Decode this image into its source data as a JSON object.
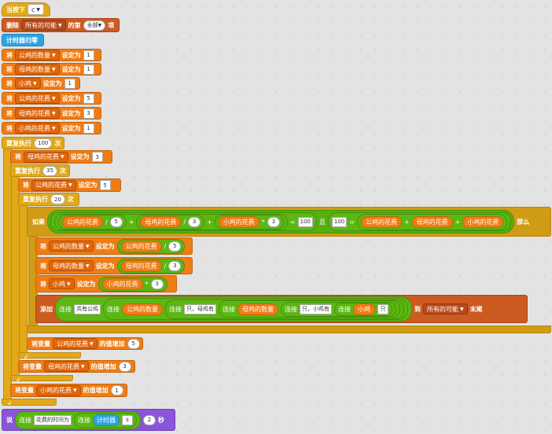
{
  "hat": {
    "label": "当按下",
    "key": "c"
  },
  "delete": {
    "label": "删除",
    "list": "所有的可能",
    "of": "的第",
    "item": "全部",
    "suffix": "项"
  },
  "reset_timer": "计时器归零",
  "set_prefix": "将",
  "set_to": "设定为",
  "init_sets": [
    {
      "var": "公鸡的数量",
      "value": "1"
    },
    {
      "var": "母鸡的数量",
      "value": "1"
    },
    {
      "var": "小鸡",
      "value": "1"
    },
    {
      "var": "公鸡的花费",
      "value": "5"
    },
    {
      "var": "母鸡的花费",
      "value": "3"
    },
    {
      "var": "小鸡的花费",
      "value": "1"
    }
  ],
  "repeat_label": "重复执行",
  "times": "次",
  "repeat1": "100",
  "repeat2": "35",
  "repeat3": "20",
  "loop2_set": {
    "var": "母鸡的花费",
    "value": "3"
  },
  "loop3_set": {
    "var": "公鸡的花费",
    "value": "5"
  },
  "if_block": {
    "if": "如果",
    "then": "那么",
    "and": "且",
    "a1": "公鸡的花费",
    "div1": "/",
    "n1": "5",
    "plus": "+",
    "a2": "母鸡的花费",
    "div2": "/",
    "n2": "3",
    "a3": "小鸡的花费",
    "mul": "*",
    "n3": "3",
    "eq": "=",
    "v1": "100",
    "v2": "100",
    "b1": "公鸡的花费",
    "b2": "母鸡的花费",
    "b3": "小鸡的花费"
  },
  "inner_sets": [
    {
      "var": "公鸡的数量",
      "arg": "公鸡的花费",
      "op": "/",
      "n": "5"
    },
    {
      "var": "母鸡的数量",
      "arg": "母鸡的花费",
      "op": "/",
      "n": "3"
    },
    {
      "var": "小鸡",
      "arg": "小鸡的花费",
      "op": "*",
      "n": "3"
    }
  ],
  "add_block": {
    "add": "添加",
    "join": "连接",
    "s1": "共有公鸡",
    "v1": "公鸡的数量",
    "s2": "只，母鸡有",
    "v2": "母鸡的数量",
    "s3": "只，小鸡有",
    "v3": "小鸡",
    "s4": "只",
    "to": "到",
    "list": "所有的可能",
    "end": "末尾"
  },
  "change_prefix": "将变量",
  "change_by": "的值增加",
  "change1": {
    "var": "公鸡的花费",
    "value": "5"
  },
  "change2": {
    "var": "母鸡的花费",
    "value": "3"
  },
  "change3": {
    "var": "小鸡的花费",
    "value": "1"
  },
  "say": {
    "label": "说",
    "join": "连接",
    "text": "花费的时间为",
    "timer": "计时器",
    "s": "s",
    "secs": "2",
    "unit": "秒"
  }
}
